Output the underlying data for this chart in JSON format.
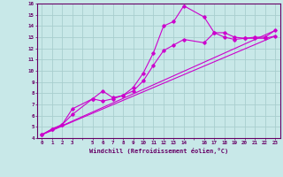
{
  "xlabel": "Windchill (Refroidissement éolien,°C)",
  "bg_color": "#c8e8e8",
  "grid_color": "#a8cece",
  "line_color": "#cc00cc",
  "xlim": [
    -0.5,
    23.5
  ],
  "ylim": [
    4,
    16
  ],
  "yticks": [
    4,
    5,
    6,
    7,
    8,
    9,
    10,
    11,
    12,
    13,
    14,
    15,
    16
  ],
  "line1_x": [
    0,
    1,
    2,
    3,
    5,
    6,
    7,
    8,
    9,
    10,
    11,
    12,
    13,
    14,
    16,
    17,
    18,
    19,
    20,
    21,
    22,
    23
  ],
  "line1_y": [
    4.3,
    4.8,
    5.2,
    6.6,
    7.5,
    8.2,
    7.6,
    7.8,
    8.5,
    9.8,
    11.6,
    14.0,
    14.4,
    15.8,
    14.8,
    13.4,
    13.4,
    13.0,
    12.9,
    13.0,
    13.0,
    13.6
  ],
  "line2_x": [
    0,
    1,
    2,
    3,
    5,
    6,
    7,
    8,
    9,
    10,
    11,
    12,
    13,
    14,
    16,
    17,
    18,
    19,
    20,
    21,
    22,
    23
  ],
  "line2_y": [
    4.3,
    4.8,
    5.2,
    6.1,
    7.5,
    7.3,
    7.5,
    7.8,
    8.2,
    9.1,
    10.5,
    11.8,
    12.3,
    12.8,
    12.5,
    13.4,
    13.0,
    12.8,
    12.9,
    12.9,
    12.9,
    13.1
  ],
  "line3_x": [
    0,
    23
  ],
  "line3_y": [
    4.3,
    13.6
  ],
  "line4_x": [
    0,
    23
  ],
  "line4_y": [
    4.3,
    13.1
  ]
}
